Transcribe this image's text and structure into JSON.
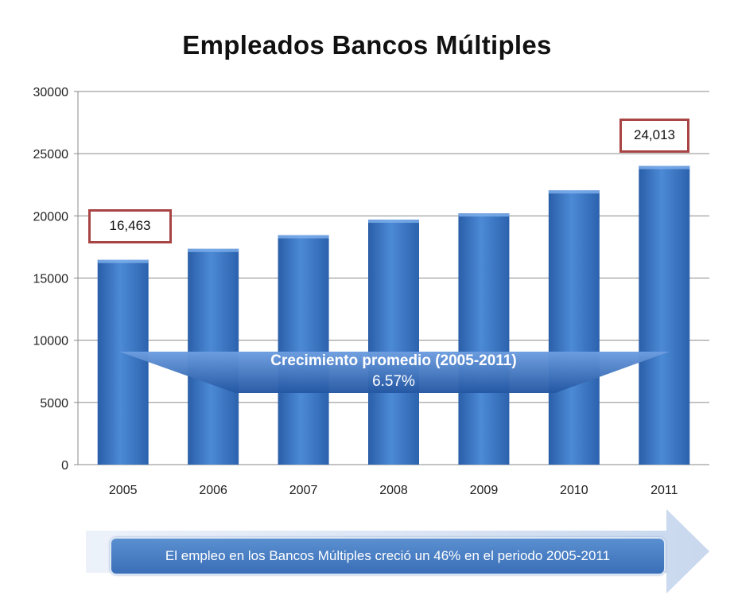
{
  "chart_data": {
    "type": "bar",
    "title": "Empleados Bancos Múltiples",
    "categories": [
      "2005",
      "2006",
      "2007",
      "2008",
      "2009",
      "2010",
      "2011"
    ],
    "values": [
      16463,
      17350,
      18450,
      19700,
      20200,
      22050,
      24013
    ],
    "ylim": [
      0,
      30000
    ],
    "yticks": [
      "0",
      "5000",
      "10000",
      "15000",
      "20000",
      "25000",
      "30000"
    ],
    "grid": true,
    "bar_color": "#3a73c4",
    "callouts": {
      "first": "16,463",
      "last": "24,013"
    },
    "annotation": {
      "title": "Crecimiento promedio (2005-2011)",
      "value": "6.57%"
    }
  },
  "summary": "El empleo  en los Bancos Múltiples creció un 46% en el periodo 2005-2011",
  "colors": {
    "callout_border": "#a94444",
    "arrow": "#2d63b0",
    "banner": "#3a6fb8"
  }
}
